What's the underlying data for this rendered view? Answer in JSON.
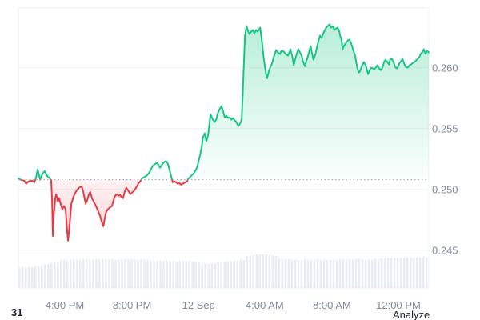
{
  "footer": {
    "left_text": "31",
    "analyze_label": "Analyze"
  },
  "chart_data": {
    "type": "area",
    "title": "",
    "xlabel": "",
    "ylabel": "",
    "grid": true,
    "legend": null,
    "ylim": [
      0.2419,
      0.2649
    ],
    "baseline_price": 0.2508,
    "y_ticks": [
      0.245,
      0.25,
      0.255,
      0.26
    ],
    "y_tick_labels": [
      "0.245",
      "0.250",
      "0.255",
      "0.260"
    ],
    "x_ticks": [
      {
        "label": "4:00 PM",
        "pct": 0.113
      },
      {
        "label": "8:00 PM",
        "pct": 0.277
      },
      {
        "label": "12 Sep",
        "pct": 0.439
      },
      {
        "label": "4:00 AM",
        "pct": 0.6
      },
      {
        "label": "8:00 AM",
        "pct": 0.764
      },
      {
        "label": "12:00 PM",
        "pct": 0.926
      }
    ],
    "colors": {
      "up": "#16c784",
      "down": "#ea3943",
      "grid": "#eff2f5",
      "axis_text": "#808a9d",
      "baseline_dots": "#9aa3b2",
      "volume_bar": "#e9edf3",
      "text_dark": "#222531"
    },
    "series": [
      {
        "name": "price",
        "points": [
          [
            0.0,
            0.2509
          ],
          [
            0.006,
            0.25079
          ],
          [
            0.014,
            0.25072
          ],
          [
            0.019,
            0.25046
          ],
          [
            0.025,
            0.25066
          ],
          [
            0.033,
            0.25072
          ],
          [
            0.039,
            0.25059
          ],
          [
            0.043,
            0.25099
          ],
          [
            0.047,
            0.25164
          ],
          [
            0.053,
            0.25079
          ],
          [
            0.058,
            0.25125
          ],
          [
            0.064,
            0.25151
          ],
          [
            0.07,
            0.25112
          ],
          [
            0.076,
            0.25092
          ],
          [
            0.08,
            0.25072
          ],
          [
            0.082,
            0.24914
          ],
          [
            0.084,
            0.24618
          ],
          [
            0.086,
            0.24783
          ],
          [
            0.09,
            0.24928
          ],
          [
            0.092,
            0.24961
          ],
          [
            0.096,
            0.24901
          ],
          [
            0.099,
            0.24928
          ],
          [
            0.103,
            0.24882
          ],
          [
            0.107,
            0.24836
          ],
          [
            0.111,
            0.24862
          ],
          [
            0.115,
            0.24836
          ],
          [
            0.119,
            0.24651
          ],
          [
            0.121,
            0.24579
          ],
          [
            0.125,
            0.24717
          ],
          [
            0.129,
            0.24882
          ],
          [
            0.135,
            0.24947
          ],
          [
            0.14,
            0.2498
          ],
          [
            0.144,
            0.25
          ],
          [
            0.148,
            0.25013
          ],
          [
            0.154,
            0.25026
          ],
          [
            0.158,
            0.2498
          ],
          [
            0.164,
            0.24882
          ],
          [
            0.168,
            0.24914
          ],
          [
            0.172,
            0.24961
          ],
          [
            0.175,
            0.2498
          ],
          [
            0.179,
            0.24928
          ],
          [
            0.183,
            0.24901
          ],
          [
            0.189,
            0.24862
          ],
          [
            0.195,
            0.24816
          ],
          [
            0.199,
            0.24783
          ],
          [
            0.203,
            0.24737
          ],
          [
            0.207,
            0.24697
          ],
          [
            0.211,
            0.2477
          ],
          [
            0.214,
            0.24816
          ],
          [
            0.218,
            0.24836
          ],
          [
            0.222,
            0.24849
          ],
          [
            0.228,
            0.24862
          ],
          [
            0.232,
            0.24914
          ],
          [
            0.236,
            0.24947
          ],
          [
            0.24,
            0.24961
          ],
          [
            0.244,
            0.24947
          ],
          [
            0.248,
            0.24954
          ],
          [
            0.251,
            0.24934
          ],
          [
            0.255,
            0.24928
          ],
          [
            0.259,
            0.2498
          ],
          [
            0.263,
            0.25013
          ],
          [
            0.267,
            0.24993
          ],
          [
            0.273,
            0.24961
          ],
          [
            0.277,
            0.24974
          ],
          [
            0.283,
            0.24993
          ],
          [
            0.288,
            0.2502
          ],
          [
            0.292,
            0.25046
          ],
          [
            0.298,
            0.25072
          ],
          [
            0.302,
            0.25092
          ],
          [
            0.306,
            0.25099
          ],
          [
            0.312,
            0.25112
          ],
          [
            0.316,
            0.25125
          ],
          [
            0.32,
            0.25145
          ],
          [
            0.324,
            0.25171
          ],
          [
            0.327,
            0.25191
          ],
          [
            0.331,
            0.25204
          ],
          [
            0.337,
            0.25217
          ],
          [
            0.341,
            0.25204
          ],
          [
            0.345,
            0.25178
          ],
          [
            0.349,
            0.25197
          ],
          [
            0.353,
            0.25217
          ],
          [
            0.357,
            0.2523
          ],
          [
            0.361,
            0.2523
          ],
          [
            0.365,
            0.25204
          ],
          [
            0.368,
            0.25164
          ],
          [
            0.372,
            0.25112
          ],
          [
            0.376,
            0.25059
          ],
          [
            0.38,
            0.25066
          ],
          [
            0.384,
            0.25059
          ],
          [
            0.388,
            0.25046
          ],
          [
            0.392,
            0.25053
          ],
          [
            0.396,
            0.25039
          ],
          [
            0.4,
            0.25046
          ],
          [
            0.404,
            0.25053
          ],
          [
            0.407,
            0.25059
          ],
          [
            0.411,
            0.25066
          ],
          [
            0.415,
            0.25092
          ],
          [
            0.419,
            0.25105
          ],
          [
            0.423,
            0.25118
          ],
          [
            0.427,
            0.25132
          ],
          [
            0.431,
            0.25151
          ],
          [
            0.435,
            0.25178
          ],
          [
            0.439,
            0.2523
          ],
          [
            0.443,
            0.25289
          ],
          [
            0.446,
            0.25336
          ],
          [
            0.45,
            0.25428
          ],
          [
            0.454,
            0.25461
          ],
          [
            0.458,
            0.25395
          ],
          [
            0.462,
            0.25441
          ],
          [
            0.466,
            0.25553
          ],
          [
            0.468,
            0.25618
          ],
          [
            0.472,
            0.25586
          ],
          [
            0.478,
            0.25553
          ],
          [
            0.482,
            0.25572
          ],
          [
            0.485,
            0.25618
          ],
          [
            0.489,
            0.25651
          ],
          [
            0.495,
            0.25684
          ],
          [
            0.499,
            0.25638
          ],
          [
            0.503,
            0.25592
          ],
          [
            0.507,
            0.25605
          ],
          [
            0.511,
            0.25586
          ],
          [
            0.515,
            0.25592
          ],
          [
            0.519,
            0.25572
          ],
          [
            0.522,
            0.25586
          ],
          [
            0.526,
            0.25572
          ],
          [
            0.53,
            0.25559
          ],
          [
            0.536,
            0.2552
          ],
          [
            0.54,
            0.25539
          ],
          [
            0.544,
            0.25572
          ],
          [
            0.548,
            0.25901
          ],
          [
            0.552,
            0.26263
          ],
          [
            0.556,
            0.26342
          ],
          [
            0.56,
            0.26296
          ],
          [
            0.563,
            0.26276
          ],
          [
            0.567,
            0.26296
          ],
          [
            0.571,
            0.26309
          ],
          [
            0.575,
            0.26283
          ],
          [
            0.579,
            0.26309
          ],
          [
            0.583,
            0.26296
          ],
          [
            0.589,
            0.26329
          ],
          [
            0.593,
            0.2623
          ],
          [
            0.597,
            0.26099
          ],
          [
            0.601,
            0.26
          ],
          [
            0.604,
            0.25934
          ],
          [
            0.606,
            0.25914
          ],
          [
            0.61,
            0.25967
          ],
          [
            0.614,
            0.26007
          ],
          [
            0.618,
            0.26033
          ],
          [
            0.622,
            0.26086
          ],
          [
            0.628,
            0.26145
          ],
          [
            0.632,
            0.26125
          ],
          [
            0.637,
            0.26112
          ],
          [
            0.641,
            0.26138
          ],
          [
            0.647,
            0.26132
          ],
          [
            0.651,
            0.26112
          ],
          [
            0.657,
            0.26099
          ],
          [
            0.661,
            0.26132
          ],
          [
            0.663,
            0.26151
          ],
          [
            0.667,
            0.26099
          ],
          [
            0.671,
            0.2602
          ],
          [
            0.674,
            0.26066
          ],
          [
            0.678,
            0.26112
          ],
          [
            0.682,
            0.26151
          ],
          [
            0.686,
            0.26125
          ],
          [
            0.69,
            0.26099
          ],
          [
            0.694,
            0.26046
          ],
          [
            0.698,
            0.26013
          ],
          [
            0.702,
            0.26059
          ],
          [
            0.706,
            0.26099
          ],
          [
            0.71,
            0.26151
          ],
          [
            0.712,
            0.26178
          ],
          [
            0.715,
            0.26125
          ],
          [
            0.719,
            0.26066
          ],
          [
            0.723,
            0.26099
          ],
          [
            0.727,
            0.26164
          ],
          [
            0.731,
            0.26217
          ],
          [
            0.735,
            0.26263
          ],
          [
            0.739,
            0.26243
          ],
          [
            0.743,
            0.26283
          ],
          [
            0.747,
            0.26309
          ],
          [
            0.75,
            0.26329
          ],
          [
            0.754,
            0.26342
          ],
          [
            0.758,
            0.26355
          ],
          [
            0.762,
            0.26329
          ],
          [
            0.766,
            0.26342
          ],
          [
            0.77,
            0.26309
          ],
          [
            0.774,
            0.26322
          ],
          [
            0.778,
            0.26329
          ],
          [
            0.782,
            0.26296
          ],
          [
            0.784,
            0.26263
          ],
          [
            0.788,
            0.26217
          ],
          [
            0.79,
            0.26151
          ],
          [
            0.793,
            0.26178
          ],
          [
            0.797,
            0.26197
          ],
          [
            0.801,
            0.26217
          ],
          [
            0.805,
            0.2623
          ],
          [
            0.807,
            0.2623
          ],
          [
            0.811,
            0.26197
          ],
          [
            0.813,
            0.26178
          ],
          [
            0.817,
            0.26132
          ],
          [
            0.821,
            0.26092
          ],
          [
            0.823,
            0.26046
          ],
          [
            0.827,
            0.2598
          ],
          [
            0.83,
            0.25961
          ],
          [
            0.832,
            0.25967
          ],
          [
            0.836,
            0.26007
          ],
          [
            0.842,
            0.26046
          ],
          [
            0.846,
            0.2602
          ],
          [
            0.848,
            0.26
          ],
          [
            0.852,
            0.25947
          ],
          [
            0.856,
            0.2598
          ],
          [
            0.86,
            0.26
          ],
          [
            0.864,
            0.25993
          ],
          [
            0.867,
            0.25987
          ],
          [
            0.871,
            0.26
          ],
          [
            0.875,
            0.2602
          ],
          [
            0.879,
            0.25993
          ],
          [
            0.883,
            0.2598
          ],
          [
            0.887,
            0.26
          ],
          [
            0.891,
            0.26046
          ],
          [
            0.895,
            0.26066
          ],
          [
            0.899,
            0.26046
          ],
          [
            0.903,
            0.26026
          ],
          [
            0.906,
            0.26072
          ],
          [
            0.91,
            0.26072
          ],
          [
            0.914,
            0.26046
          ],
          [
            0.918,
            0.26007
          ],
          [
            0.922,
            0.25993
          ],
          [
            0.924,
            0.26
          ],
          [
            0.928,
            0.26033
          ],
          [
            0.932,
            0.26053
          ],
          [
            0.936,
            0.26072
          ],
          [
            0.94,
            0.26033
          ],
          [
            0.944,
            0.26007
          ],
          [
            0.949,
            0.26
          ],
          [
            0.953,
            0.2602
          ],
          [
            0.957,
            0.26026
          ],
          [
            0.961,
            0.2604
          ],
          [
            0.965,
            0.26046
          ],
          [
            0.969,
            0.26059
          ],
          [
            0.973,
            0.26072
          ],
          [
            0.977,
            0.26086
          ],
          [
            0.98,
            0.26112
          ],
          [
            0.984,
            0.26125
          ],
          [
            0.988,
            0.26151
          ],
          [
            0.992,
            0.26112
          ],
          [
            0.996,
            0.26138
          ],
          [
            1.0,
            0.26125
          ]
        ]
      }
    ],
    "volume": [
      0.6,
      0.63,
      0.61,
      0.64,
      0.62,
      0.66,
      0.65,
      0.7,
      0.72,
      0.71,
      0.74,
      0.76,
      0.78,
      0.83,
      0.84,
      0.82,
      0.85,
      0.86,
      0.84,
      0.85,
      0.87,
      0.86,
      0.85,
      0.84,
      0.86,
      0.85,
      0.87,
      0.86,
      0.85,
      0.86,
      0.84,
      0.85,
      0.86,
      0.87,
      0.85,
      0.86,
      0.85,
      0.84,
      0.86,
      0.85,
      0.84,
      0.82,
      0.83,
      0.81,
      0.82,
      0.8,
      0.81,
      0.82,
      0.8,
      0.79,
      0.81,
      0.8,
      0.82,
      0.81,
      0.8,
      0.79,
      0.76,
      0.74,
      0.73,
      0.72,
      0.74,
      0.73,
      0.75,
      0.77,
      0.78,
      0.8,
      0.79,
      0.81,
      0.82,
      0.84,
      0.83,
      0.95,
      0.97,
      0.98,
      0.99,
      1.0,
      0.99,
      1.0,
      0.98,
      0.97,
      0.96,
      0.88,
      0.86,
      0.85,
      0.86,
      0.84,
      0.85,
      0.83,
      0.84,
      0.86,
      0.85,
      0.84,
      0.85,
      0.86,
      0.84,
      0.85,
      0.83,
      0.84,
      0.85,
      0.84,
      0.86,
      0.85,
      0.87,
      0.86,
      0.85,
      0.86,
      0.87,
      0.85,
      0.84,
      0.86,
      0.85,
      0.87,
      0.86,
      0.88,
      0.87,
      0.89,
      0.88,
      0.9,
      0.89,
      0.91,
      0.9,
      0.92,
      0.91,
      0.9,
      0.92,
      0.91,
      0.93,
      0.92
    ]
  }
}
